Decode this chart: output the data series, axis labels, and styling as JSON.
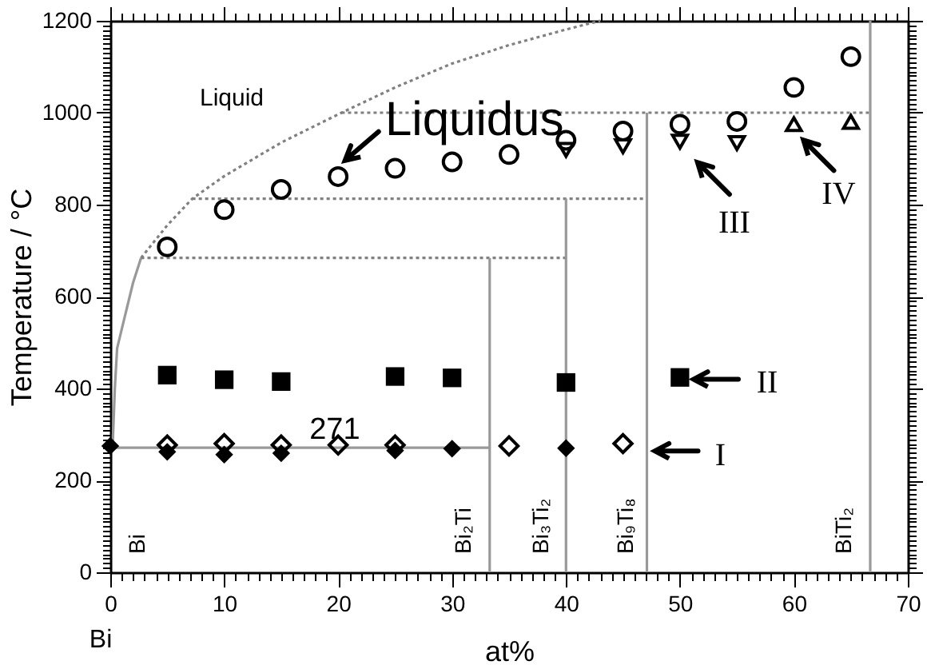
{
  "chart_data": {
    "type": "scatter",
    "xlabel": "at%",
    "ylabel": "Temperature / °C",
    "xlim": [
      0,
      70
    ],
    "ylim": [
      0,
      1200
    ],
    "xticks": [
      0,
      {
        "value": 1,
        "label": null
      },
      {
        "value": 2,
        "label": null
      },
      {
        "value": 3,
        "label": null
      },
      {
        "value": 4,
        "label": null
      },
      {
        "value": 5,
        "label": null
      },
      {
        "value": 6,
        "label": null
      },
      {
        "value": 7,
        "label": null
      },
      {
        "value": 8,
        "label": null
      },
      {
        "value": 9,
        "label": null
      },
      10,
      {
        "value": 11,
        "label": null
      },
      {
        "value": 12,
        "label": null
      },
      {
        "value": 13,
        "label": null
      },
      {
        "value": 14,
        "label": null
      },
      {
        "value": 15,
        "label": null
      },
      {
        "value": 16,
        "label": null
      },
      {
        "value": 17,
        "label": null
      },
      {
        "value": 18,
        "label": null
      },
      {
        "value": 19,
        "label": null
      },
      20,
      {
        "value": 21,
        "label": null
      },
      {
        "value": 22,
        "label": null
      },
      {
        "value": 23,
        "label": null
      },
      {
        "value": 24,
        "label": null
      },
      {
        "value": 25,
        "label": null
      },
      {
        "value": 26,
        "label": null
      },
      {
        "value": 27,
        "label": null
      },
      {
        "value": 28,
        "label": null
      },
      {
        "value": 29,
        "label": null
      },
      30,
      {
        "value": 31,
        "label": null
      },
      {
        "value": 32,
        "label": null
      },
      {
        "value": 33,
        "label": null
      },
      {
        "value": 34,
        "label": null
      },
      {
        "value": 35,
        "label": null
      },
      {
        "value": 36,
        "label": null
      },
      {
        "value": 37,
        "label": null
      },
      {
        "value": 38,
        "label": null
      },
      {
        "value": 39,
        "label": null
      },
      40,
      {
        "value": 41,
        "label": null
      },
      {
        "value": 42,
        "label": null
      },
      {
        "value": 43,
        "label": null
      },
      {
        "value": 44,
        "label": null
      },
      {
        "value": 45,
        "label": null
      },
      {
        "value": 46,
        "label": null
      },
      {
        "value": 47,
        "label": null
      },
      {
        "value": 48,
        "label": null
      },
      {
        "value": 49,
        "label": null
      },
      50,
      {
        "value": 51,
        "label": null
      },
      {
        "value": 52,
        "label": null
      },
      {
        "value": 53,
        "label": null
      },
      {
        "value": 54,
        "label": null
      },
      {
        "value": 55,
        "label": null
      },
      {
        "value": 56,
        "label": null
      },
      {
        "value": 57,
        "label": null
      },
      {
        "value": 58,
        "label": null
      },
      {
        "value": 59,
        "label": null
      },
      60,
      {
        "value": 61,
        "label": null
      },
      {
        "value": 62,
        "label": null
      },
      {
        "value": 63,
        "label": null
      },
      {
        "value": 64,
        "label": null
      },
      {
        "value": 65,
        "label": null
      },
      {
        "value": 66,
        "label": null
      },
      {
        "value": 67,
        "label": null
      },
      {
        "value": 68,
        "label": null
      },
      {
        "value": 69,
        "label": null
      },
      70
    ],
    "yticks": [
      0,
      {
        "value": 10,
        "label": null
      },
      {
        "value": 20,
        "label": null
      },
      {
        "value": 30,
        "label": null
      },
      {
        "value": 40,
        "label": null
      },
      {
        "value": 50,
        "label": null
      },
      {
        "value": 60,
        "label": null
      },
      {
        "value": 70,
        "label": null
      },
      {
        "value": 80,
        "label": null
      },
      {
        "value": 90,
        "label": null
      },
      {
        "value": 100,
        "label": null
      },
      {
        "value": 110,
        "label": null
      },
      {
        "value": 120,
        "label": null
      },
      {
        "value": 130,
        "label": null
      },
      {
        "value": 140,
        "label": null
      },
      {
        "value": 150,
        "label": null
      },
      {
        "value": 160,
        "label": null
      },
      {
        "value": 170,
        "label": null
      },
      {
        "value": 180,
        "label": null
      },
      {
        "value": 190,
        "label": null
      },
      200,
      {
        "value": 210,
        "label": null
      },
      {
        "value": 220,
        "label": null
      },
      {
        "value": 230,
        "label": null
      },
      {
        "value": 240,
        "label": null
      },
      {
        "value": 250,
        "label": null
      },
      {
        "value": 260,
        "label": null
      },
      {
        "value": 270,
        "label": null
      },
      {
        "value": 280,
        "label": null
      },
      {
        "value": 290,
        "label": null
      },
      {
        "value": 300,
        "label": null
      },
      {
        "value": 310,
        "label": null
      },
      {
        "value": 320,
        "label": null
      },
      {
        "value": 330,
        "label": null
      },
      {
        "value": 340,
        "label": null
      },
      {
        "value": 350,
        "label": null
      },
      {
        "value": 360,
        "label": null
      },
      {
        "value": 370,
        "label": null
      },
      {
        "value": 380,
        "label": null
      },
      {
        "value": 390,
        "label": null
      },
      400,
      {
        "value": 410,
        "label": null
      },
      {
        "value": 420,
        "label": null
      },
      {
        "value": 430,
        "label": null
      },
      {
        "value": 440,
        "label": null
      },
      {
        "value": 450,
        "label": null
      },
      {
        "value": 460,
        "label": null
      },
      {
        "value": 470,
        "label": null
      },
      {
        "value": 480,
        "label": null
      },
      {
        "value": 490,
        "label": null
      },
      {
        "value": 500,
        "label": null
      },
      {
        "value": 510,
        "label": null
      },
      {
        "value": 520,
        "label": null
      },
      {
        "value": 530,
        "label": null
      },
      {
        "value": 540,
        "label": null
      },
      {
        "value": 550,
        "label": null
      },
      {
        "value": 560,
        "label": null
      },
      {
        "value": 570,
        "label": null
      },
      {
        "value": 580,
        "label": null
      },
      {
        "value": 590,
        "label": null
      },
      600,
      {
        "value": 610,
        "label": null
      },
      {
        "value": 620,
        "label": null
      },
      {
        "value": 630,
        "label": null
      },
      {
        "value": 640,
        "label": null
      },
      {
        "value": 650,
        "label": null
      },
      {
        "value": 660,
        "label": null
      },
      {
        "value": 670,
        "label": null
      },
      {
        "value": 680,
        "label": null
      },
      {
        "value": 690,
        "label": null
      },
      {
        "value": 700,
        "label": null
      },
      {
        "value": 710,
        "label": null
      },
      {
        "value": 720,
        "label": null
      },
      {
        "value": 730,
        "label": null
      },
      {
        "value": 740,
        "label": null
      },
      {
        "value": 750,
        "label": null
      },
      {
        "value": 760,
        "label": null
      },
      {
        "value": 770,
        "label": null
      },
      {
        "value": 780,
        "label": null
      },
      {
        "value": 790,
        "label": null
      },
      800,
      {
        "value": 810,
        "label": null
      },
      {
        "value": 820,
        "label": null
      },
      {
        "value": 830,
        "label": null
      },
      {
        "value": 840,
        "label": null
      },
      {
        "value": 850,
        "label": null
      },
      {
        "value": 860,
        "label": null
      },
      {
        "value": 870,
        "label": null
      },
      {
        "value": 880,
        "label": null
      },
      {
        "value": 890,
        "label": null
      },
      {
        "value": 900,
        "label": null
      },
      {
        "value": 910,
        "label": null
      },
      {
        "value": 920,
        "label": null
      },
      {
        "value": 930,
        "label": null
      },
      {
        "value": 940,
        "label": null
      },
      {
        "value": 950,
        "label": null
      },
      {
        "value": 960,
        "label": null
      },
      {
        "value": 970,
        "label": null
      },
      {
        "value": 980,
        "label": null
      },
      {
        "value": 990,
        "label": null
      },
      1000,
      {
        "value": 1010,
        "label": null
      },
      {
        "value": 1020,
        "label": null
      },
      {
        "value": 1030,
        "label": null
      },
      {
        "value": 1040,
        "label": null
      },
      {
        "value": 1050,
        "label": null
      },
      {
        "value": 1060,
        "label": null
      },
      {
        "value": 1070,
        "label": null
      },
      {
        "value": 1080,
        "label": null
      },
      {
        "value": 1090,
        "label": null
      },
      {
        "value": 1100,
        "label": null
      },
      {
        "value": 1110,
        "label": null
      },
      {
        "value": 1120,
        "label": null
      },
      {
        "value": 1130,
        "label": null
      },
      {
        "value": 1140,
        "label": null
      },
      {
        "value": 1150,
        "label": null
      },
      {
        "value": 1160,
        "label": null
      },
      {
        "value": 1170,
        "label": null
      },
      {
        "value": 1180,
        "label": null
      },
      {
        "value": 1190,
        "label": null
      },
      1200
    ],
    "series": [
      {
        "type": "line",
        "x": [
          0.2,
          0.4,
          0.6,
          1.2,
          2.0,
          2.7
        ],
        "values": [
          271,
          400,
          487,
          549,
          630,
          684
        ],
        "color": "#999999",
        "line_style": "solid"
      },
      {
        "type": "line",
        "x": [
          2.7,
          5,
          7.2,
          10,
          15,
          20.3,
          25,
          30,
          35,
          40,
          43
        ],
        "values": [
          684,
          755,
          813,
          862,
          935,
          1000,
          1055,
          1107,
          1147,
          1181,
          1200
        ],
        "color": "#808080",
        "line_style": "dotted"
      },
      {
        "type": "line",
        "x": [
          0,
          33.3
        ],
        "values": [
          271,
          271
        ],
        "color": "#999999",
        "line_style": "solid"
      },
      {
        "type": "line",
        "x": [
          2.7,
          40
        ],
        "values": [
          684,
          684
        ],
        "color": "#808080",
        "line_style": "dotted"
      },
      {
        "type": "line",
        "x": [
          7.2,
          47.1
        ],
        "values": [
          813,
          813
        ],
        "color": "#808080",
        "line_style": "dotted"
      },
      {
        "type": "line",
        "x": [
          20.3,
          66.7
        ],
        "values": [
          1000,
          1000
        ],
        "color": "#808080",
        "line_style": "dotted"
      },
      {
        "type": "line",
        "x": [
          33.3,
          33.3
        ],
        "values": [
          0,
          684
        ],
        "color": "#999999",
        "line_style": "solid"
      },
      {
        "type": "line",
        "x": [
          40,
          40
        ],
        "values": [
          0,
          813
        ],
        "color": "#999999",
        "line_style": "solid"
      },
      {
        "type": "line",
        "x": [
          47.1,
          47.1
        ],
        "values": [
          0,
          1000
        ],
        "color": "#999999",
        "line_style": "solid"
      },
      {
        "type": "line",
        "x": [
          66.7,
          66.7
        ],
        "values": [
          0,
          1200
        ],
        "color": "#999999",
        "line_style": "solid"
      },
      {
        "marker": "circle-open",
        "color": "#000000",
        "x": [
          5,
          10,
          15,
          20,
          25,
          30,
          35,
          40,
          45,
          50,
          55,
          60,
          65
        ],
        "values": [
          708,
          789,
          833,
          861,
          879,
          893,
          909,
          940,
          960,
          975,
          981,
          1055,
          1122
        ]
      },
      {
        "marker": "triangle-down-open",
        "color": "#000000",
        "x": [
          40,
          45,
          50,
          55
        ],
        "values": [
          919,
          927,
          937,
          934
        ]
      },
      {
        "marker": "triangle-open",
        "color": "#000000",
        "x": [
          60,
          65
        ],
        "values": [
          975,
          980
        ]
      },
      {
        "marker": "square",
        "color": "#000000",
        "x": [
          5,
          10,
          15,
          25,
          30,
          40,
          50
        ],
        "values": [
          429,
          419,
          415,
          426,
          423,
          413,
          424
        ]
      },
      {
        "marker": "diamond",
        "color": "#000000",
        "x": [
          0,
          5,
          10,
          15,
          25,
          30,
          40
        ],
        "values": [
          275,
          262,
          256,
          259,
          265,
          269,
          270
        ]
      },
      {
        "marker": "diamond-open",
        "color": "#000000",
        "x": [
          5,
          10,
          15,
          20,
          25,
          35,
          45
        ],
        "values": [
          277,
          280,
          277,
          277,
          277,
          275,
          280
        ]
      }
    ],
    "annotations": [
      "Liquid",
      {
        "text": "Liquidus",
        "x": 20.6,
        "y": 896
      },
      {
        "text": "271",
        "x": 19.7,
        "y": 312
      },
      {
        "text": "I",
        "x": 47.1,
        "y": 271
      },
      {
        "text": "II",
        "x": 51.2,
        "y": 420
      },
      {
        "text": "III",
        "x": 50,
        "y": 937
      },
      {
        "text": "IV",
        "x": 60,
        "y": 975
      },
      "Bi",
      {
        "text": "Bi₂Ti",
        "x": 33.3,
        "y": 40
      },
      {
        "text": "Bi₃Ti₂",
        "x": 40,
        "y": 40
      },
      {
        "text": "Bi₉Ti₈",
        "x": 47.1,
        "y": 40
      },
      {
        "text": "BiTi₂",
        "x": 66.7,
        "y": 40
      },
      "Bi"
    ]
  }
}
